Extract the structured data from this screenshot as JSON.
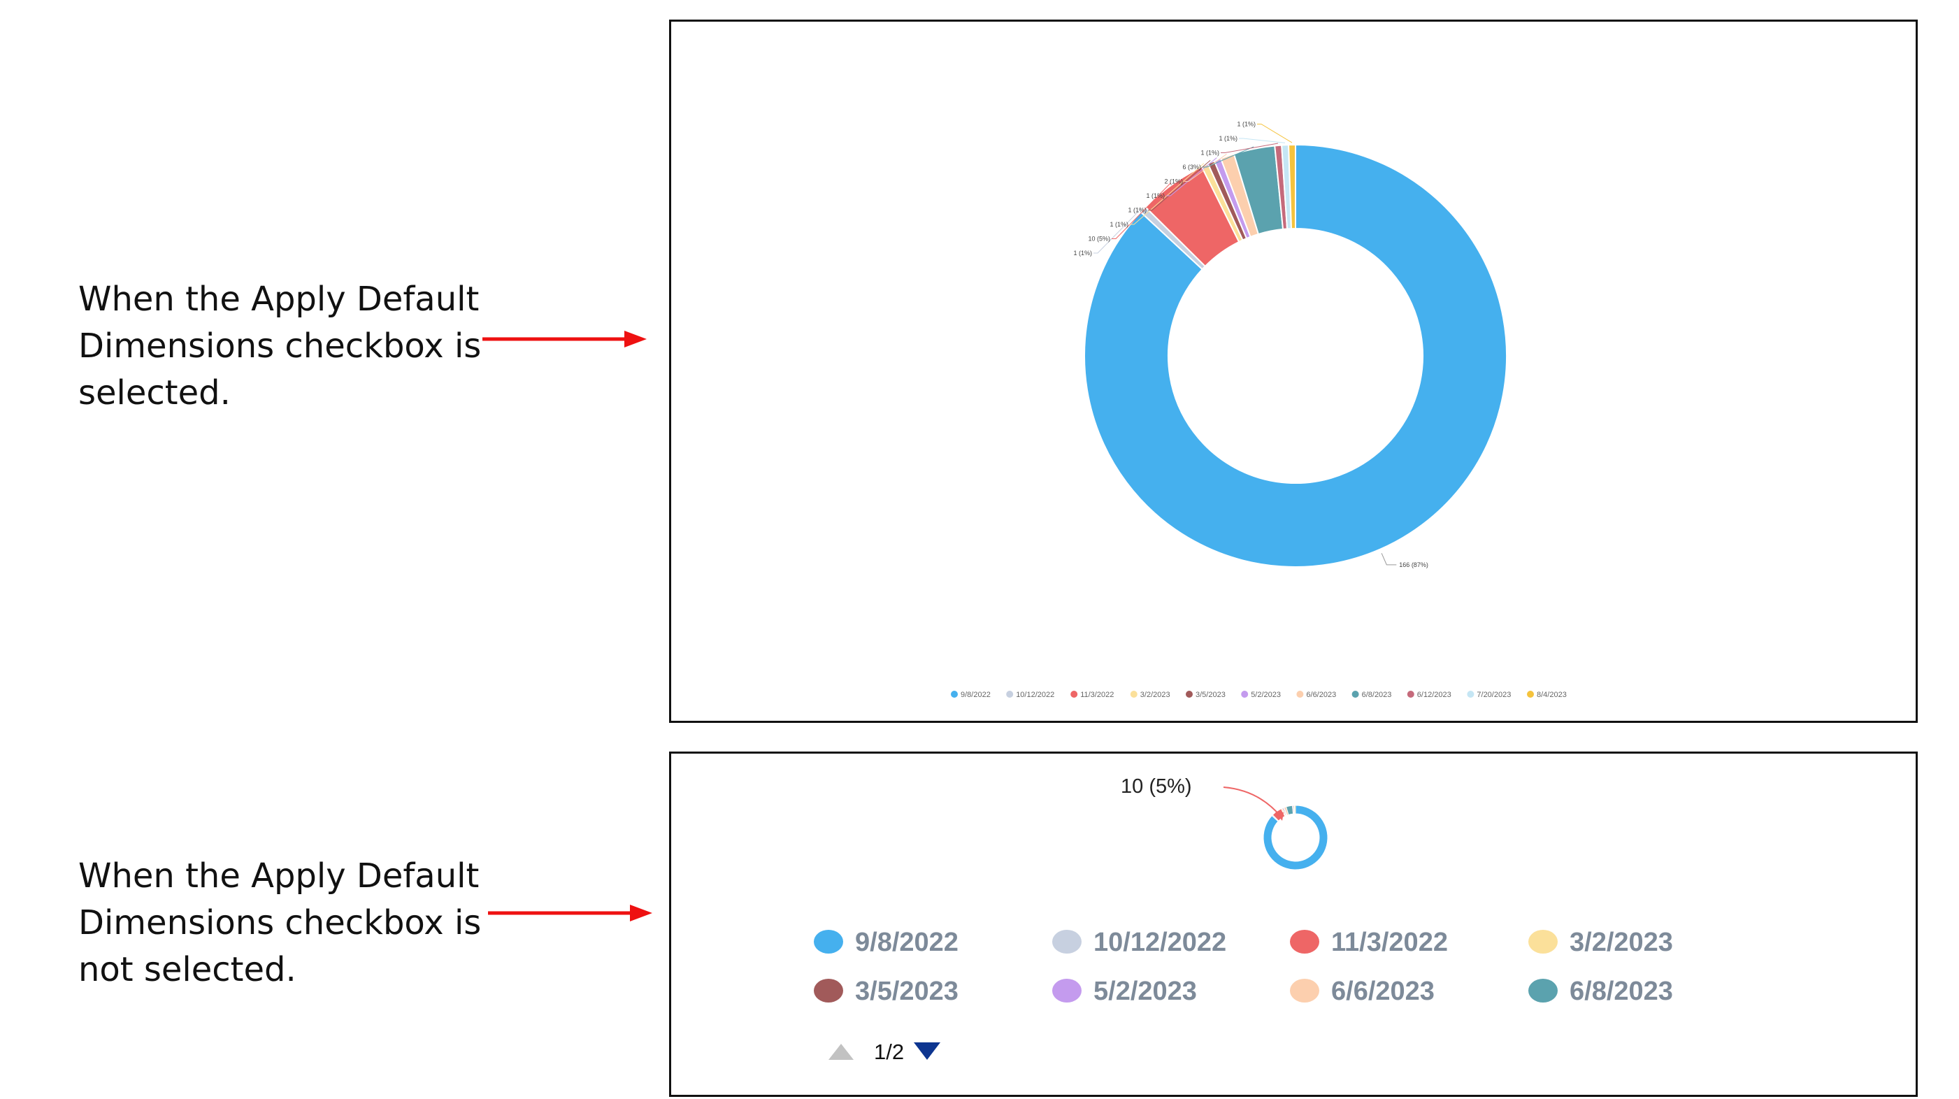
{
  "captions": {
    "selected": "When the Apply Default\nDimensions checkbox is\nselected.",
    "not_selected": "When the Apply Default\nDimensions checkbox is\nnot selected."
  },
  "colors": {
    "arrow": "#ee1111",
    "border": "#111111"
  },
  "chart_data": [
    {
      "type": "pie",
      "variant": "donut",
      "panel": "selected",
      "title": "",
      "slices": [
        {
          "category": "9/8/2022",
          "value": 166,
          "percent": 87,
          "label": "166 (87%)",
          "color": "#45b0ee"
        },
        {
          "category": "10/12/2022",
          "value": 1,
          "percent": 1,
          "label": "1 (1%)",
          "color": "#c7d0e0"
        },
        {
          "category": "11/3/2022",
          "value": 10,
          "percent": 5,
          "label": "10 (5%)",
          "color": "#ee6666"
        },
        {
          "category": "3/2/2023",
          "value": 1,
          "percent": 1,
          "label": "1 (1%)",
          "color": "#fbe09a"
        },
        {
          "category": "3/5/2023",
          "value": 1,
          "percent": 1,
          "label": "1 (1%)",
          "color": "#a15a5a"
        },
        {
          "category": "5/2/2023",
          "value": 1,
          "percent": 1,
          "label": "1 (1%)",
          "color": "#c49bee"
        },
        {
          "category": "6/6/2023",
          "value": 2,
          "percent": 1,
          "label": "2 (1%)",
          "color": "#fccfae"
        },
        {
          "category": "6/8/2023",
          "value": 6,
          "percent": 3,
          "label": "6 (3%)",
          "color": "#5ba2ae"
        },
        {
          "category": "6/12/2023",
          "value": 1,
          "percent": 1,
          "label": "1 (1%)",
          "color": "#c56a7b"
        },
        {
          "category": "7/20/2023",
          "value": 1,
          "percent": 1,
          "label": "1 (1%)",
          "color": "#c5e6f4"
        },
        {
          "category": "8/4/2023",
          "value": 1,
          "percent": 1,
          "label": "1 (1%)",
          "color": "#f5c33d"
        }
      ],
      "legend_position": "bottom"
    },
    {
      "type": "pie",
      "variant": "donut",
      "panel": "not_selected",
      "callout_label": "10 (5%)",
      "legend_position": "bottom",
      "legend_items": [
        "9/8/2022",
        "10/12/2022",
        "11/3/2022",
        "3/2/2023",
        "3/5/2023",
        "5/2/2023",
        "6/6/2023",
        "6/8/2023"
      ],
      "legend_colors": [
        "#45b0ee",
        "#c7d0e0",
        "#ee6666",
        "#fbe09a",
        "#a15a5a",
        "#c49bee",
        "#fccfae",
        "#5ba2ae"
      ],
      "legend_page": "1/2"
    }
  ]
}
